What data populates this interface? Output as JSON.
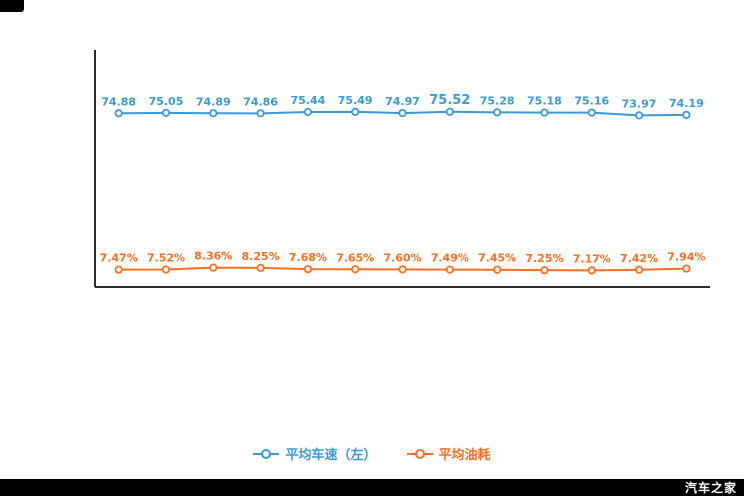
{
  "watermark": {
    "text": "汽车之家",
    "bar_color": "#000000",
    "text_color": "#ffffff"
  },
  "chart_data": {
    "type": "line",
    "title": "",
    "xlabel": "",
    "ylabel": "",
    "ylim": [
      0,
      100
    ],
    "grid": false,
    "x_tick_labels": [],
    "legend_position": "bottom-center",
    "axis_color": "#2b2b2b",
    "series": [
      {
        "name": "平均车速（左）",
        "color": "#3a9ad9",
        "marker": "circle-hollow",
        "emphasis_index": 7,
        "values": [
          74.88,
          75.05,
          74.89,
          74.86,
          75.44,
          75.49,
          74.97,
          75.52,
          75.28,
          75.18,
          75.16,
          73.97,
          74.19
        ],
        "labels": [
          "74.88",
          "75.05",
          "74.89",
          "74.86",
          "75.44",
          "75.49",
          "74.97",
          "75.52",
          "75.28",
          "75.18",
          "75.16",
          "73.97",
          "74.19"
        ]
      },
      {
        "name": "平均油耗",
        "color": "#ff6e20",
        "marker": "circle-hollow",
        "values": [
          7.47,
          7.52,
          8.36,
          8.25,
          7.68,
          7.65,
          7.6,
          7.49,
          7.45,
          7.25,
          7.17,
          7.42,
          7.94
        ],
        "labels": [
          "7.47%",
          "7.52%",
          "8.36%",
          "8.25%",
          "7.68%",
          "7.65%",
          "7.60%",
          "7.49%",
          "7.45%",
          "7.25%",
          "7.17%",
          "7.42%",
          "7.94%"
        ]
      }
    ]
  }
}
